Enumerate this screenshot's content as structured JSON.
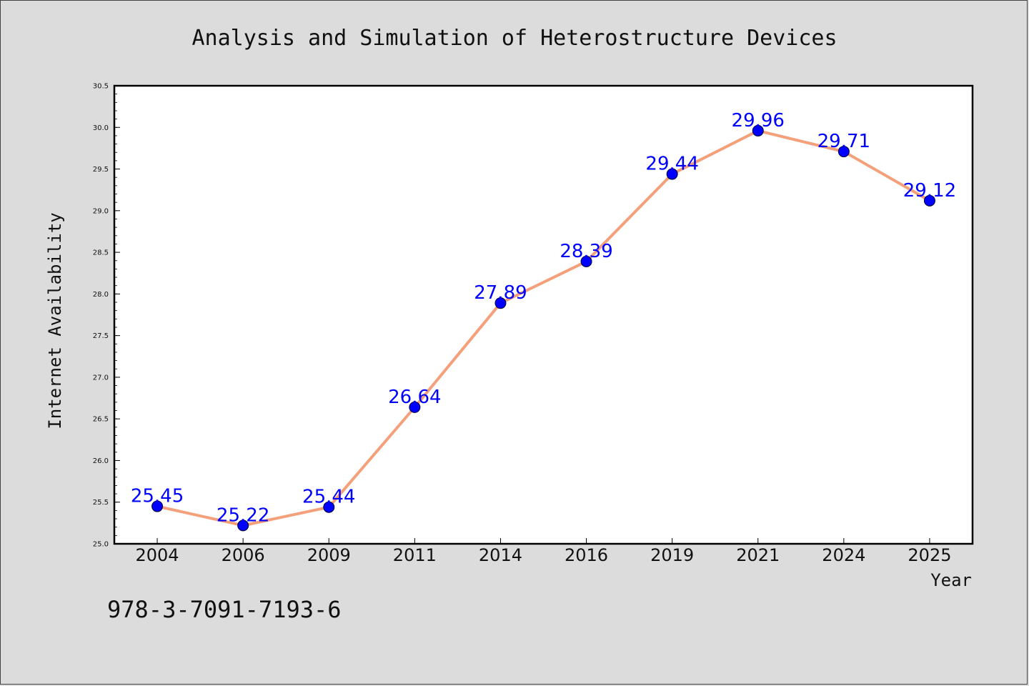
{
  "chart_data": {
    "type": "line",
    "title": "Analysis and Simulation of Heterostructure Devices",
    "xlabel": "Year",
    "ylabel": "Internet Availability",
    "categories": [
      "2004",
      "2006",
      "2009",
      "2011",
      "2014",
      "2016",
      "2019",
      "2021",
      "2024",
      "2025"
    ],
    "series": [
      {
        "values": [
          25.45,
          25.22,
          25.44,
          26.64,
          27.89,
          28.39,
          29.44,
          29.96,
          29.71,
          29.12
        ]
      }
    ],
    "data_labels": [
      "25.45",
      "25.22",
      "25.44",
      "26.64",
      "27.89",
      "28.39",
      "29.44",
      "29.96",
      "29.71",
      "29.12"
    ],
    "ylim": [
      25.0,
      30.5
    ],
    "yticks": [
      "25.0",
      "25.5",
      "26.0",
      "26.5",
      "27.0",
      "27.5",
      "28.0",
      "28.5",
      "29.0",
      "29.5",
      "30.0",
      "30.5"
    ],
    "grid": false,
    "legend": "none",
    "colors": {
      "line": "#f4a07a",
      "marker": "#0000ff",
      "label": "#0000ff",
      "plot_bg": "#ffffff",
      "page_bg": "#dcdcdc"
    }
  },
  "footer": {
    "isbn": "978-3-7091-7193-6"
  }
}
